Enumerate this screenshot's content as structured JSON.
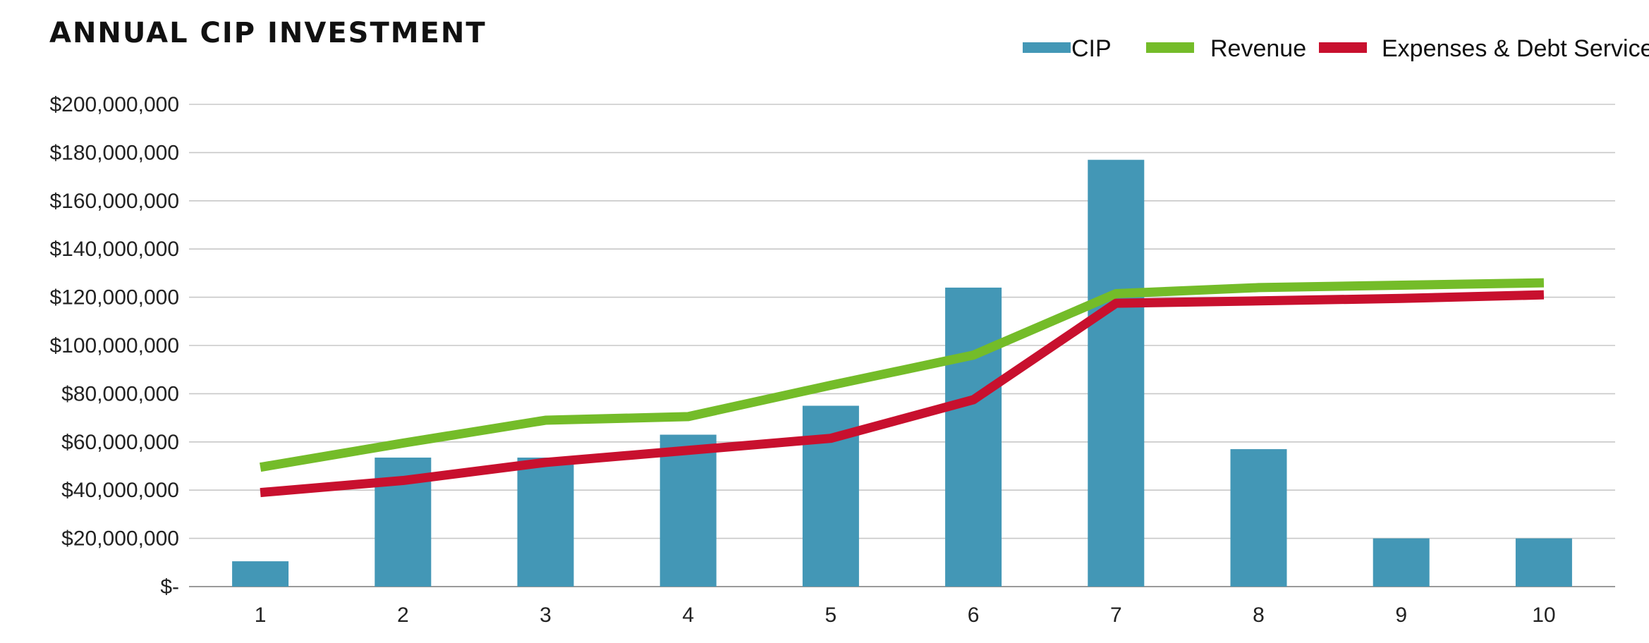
{
  "chart_data": {
    "type": "bar",
    "title": "ANNUAL CIP INVESTMENT",
    "categories": [
      "1",
      "2",
      "3",
      "4",
      "5",
      "6",
      "7",
      "8",
      "9",
      "10"
    ],
    "ylim": [
      0,
      200000000
    ],
    "yticks": [
      0,
      20000000,
      40000000,
      60000000,
      80000000,
      100000000,
      120000000,
      140000000,
      160000000,
      180000000,
      200000000
    ],
    "ytick_labels": [
      "$-",
      "$20,000,000",
      "$40,000,000",
      "$60,000,000",
      "$80,000,000",
      "$100,000,000",
      "$120,000,000",
      "$140,000,000",
      "$160,000,000",
      "$180,000,000",
      "$200,000,000"
    ],
    "grid": true,
    "legend_position": "top-right",
    "series": [
      {
        "name": "CIP",
        "type": "bar",
        "color": "#4397b6",
        "values": [
          10500000,
          53500000,
          53500000,
          63000000,
          75000000,
          124000000,
          177000000,
          57000000,
          20000000,
          20000000
        ]
      },
      {
        "name": "Revenue",
        "type": "line",
        "color": "#74bc29",
        "values": [
          49500000,
          59500000,
          69000000,
          70500000,
          83500000,
          96000000,
          121500000,
          124000000,
          125000000,
          126000000
        ]
      },
      {
        "name": "Expenses & Debt Service",
        "type": "line",
        "color": "#c8102e",
        "values": [
          39000000,
          44000000,
          51500000,
          56500000,
          61500000,
          77500000,
          117500000,
          118500000,
          119500000,
          121000000
        ]
      }
    ]
  }
}
